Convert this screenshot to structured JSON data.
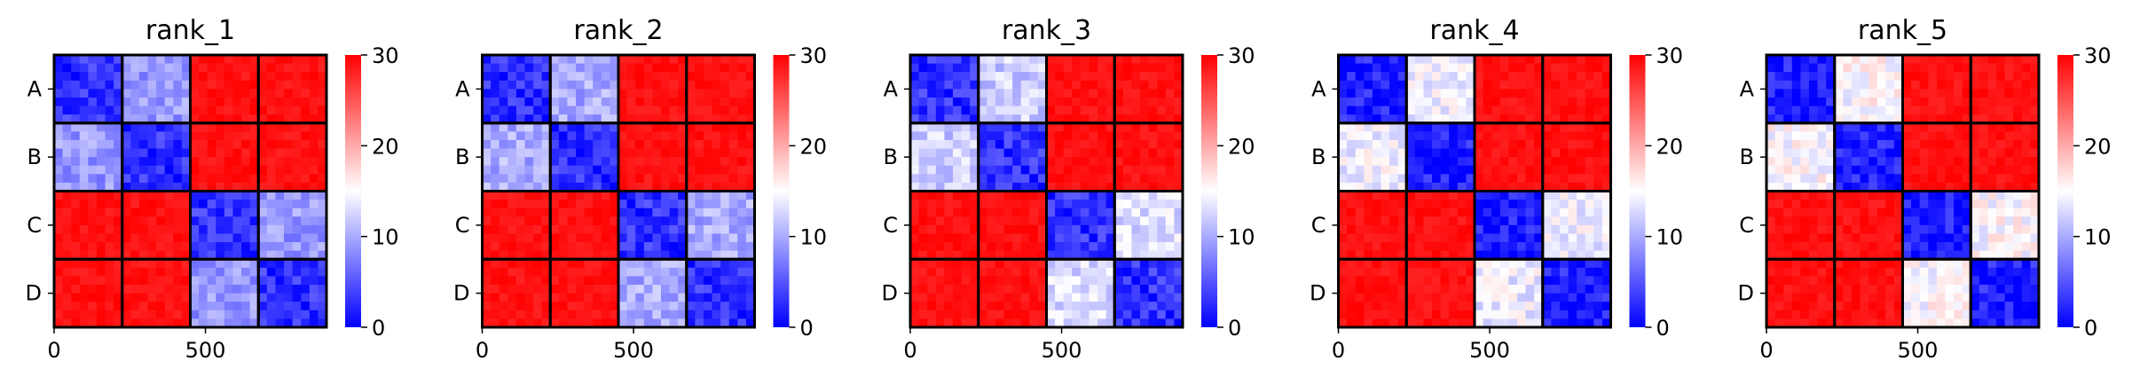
{
  "colors": {
    "low": "#0000ff",
    "mid": "#ffffff",
    "high": "#ff0000",
    "block_border": "#000000"
  },
  "chart_data": [
    {
      "type": "heatmap",
      "title": "rank_1",
      "row_labels": [
        "A",
        "B",
        "C",
        "D"
      ],
      "x_ticks": [
        0,
        500
      ],
      "x_range": [
        0,
        900
      ],
      "colorbar": {
        "min": 0,
        "max": 30,
        "ticks": [
          0,
          10,
          20,
          30
        ],
        "colormap": "bwr"
      },
      "block_means": [
        [
          3,
          9,
          29,
          29
        ],
        [
          9,
          3,
          29,
          29
        ],
        [
          29,
          29,
          3,
          9
        ],
        [
          29,
          29,
          9,
          3
        ]
      ]
    },
    {
      "type": "heatmap",
      "title": "rank_2",
      "row_labels": [
        "A",
        "B",
        "C",
        "D"
      ],
      "x_ticks": [
        0,
        500
      ],
      "x_range": [
        0,
        900
      ],
      "colorbar": {
        "min": 0,
        "max": 30,
        "ticks": [
          0,
          10,
          20,
          30
        ],
        "colormap": "bwr"
      },
      "block_means": [
        [
          3,
          10,
          29,
          29
        ],
        [
          10,
          3,
          29,
          29
        ],
        [
          29,
          29,
          3,
          10
        ],
        [
          29,
          29,
          10,
          3
        ]
      ]
    },
    {
      "type": "heatmap",
      "title": "rank_3",
      "row_labels": [
        "A",
        "B",
        "C",
        "D"
      ],
      "x_ticks": [
        0,
        500
      ],
      "x_range": [
        0,
        900
      ],
      "colorbar": {
        "min": 0,
        "max": 30,
        "ticks": [
          0,
          10,
          20,
          30
        ],
        "colormap": "bwr"
      },
      "block_means": [
        [
          3,
          12,
          29,
          29
        ],
        [
          12,
          3,
          29,
          29
        ],
        [
          29,
          29,
          3,
          13
        ],
        [
          29,
          29,
          13,
          3
        ]
      ]
    },
    {
      "type": "heatmap",
      "title": "rank_4",
      "row_labels": [
        "A",
        "B",
        "C",
        "D"
      ],
      "x_ticks": [
        0,
        500
      ],
      "x_range": [
        0,
        900
      ],
      "colorbar": {
        "min": 0,
        "max": 30,
        "ticks": [
          0,
          10,
          20,
          30
        ],
        "colormap": "bwr"
      },
      "block_means": [
        [
          2,
          14,
          29,
          29
        ],
        [
          14,
          2,
          29,
          29
        ],
        [
          29,
          29,
          2,
          14
        ],
        [
          29,
          29,
          14,
          2
        ]
      ]
    },
    {
      "type": "heatmap",
      "title": "rank_5",
      "row_labels": [
        "A",
        "B",
        "C",
        "D"
      ],
      "x_ticks": [
        0,
        500
      ],
      "x_range": [
        0,
        900
      ],
      "colorbar": {
        "min": 0,
        "max": 30,
        "ticks": [
          0,
          10,
          20,
          30
        ],
        "colormap": "bwr"
      },
      "block_means": [
        [
          2,
          15,
          29,
          29
        ],
        [
          15,
          2,
          29,
          29
        ],
        [
          29,
          29,
          2,
          15
        ],
        [
          29,
          29,
          15,
          2
        ]
      ]
    }
  ]
}
